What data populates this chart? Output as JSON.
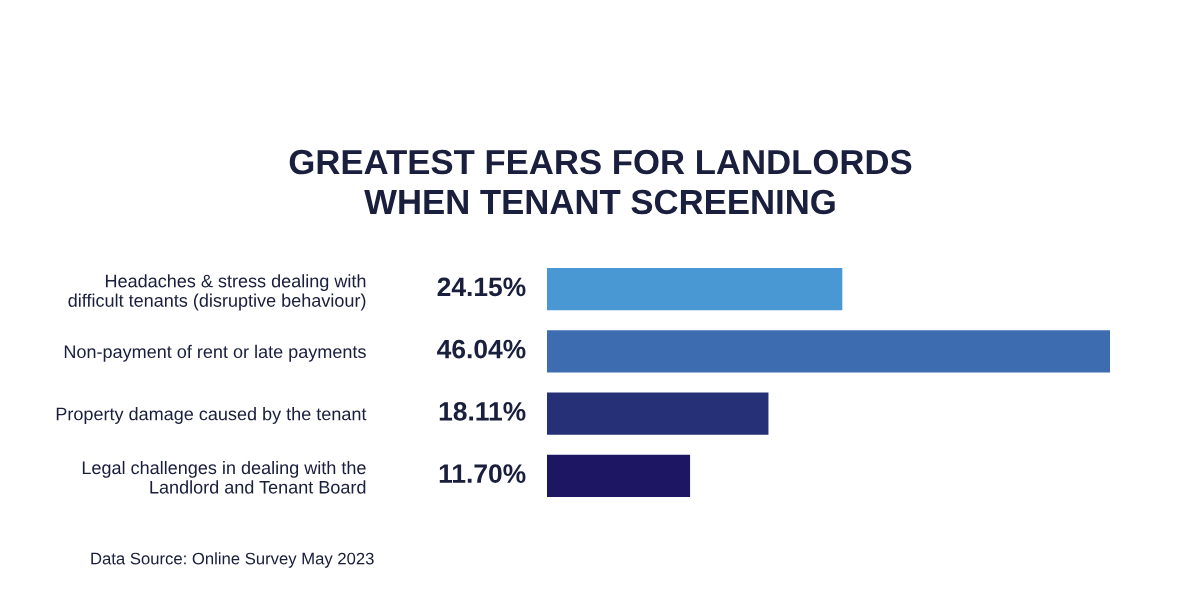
{
  "chart_data": {
    "type": "bar",
    "orientation": "horizontal",
    "title": "GREATEST FEARS FOR LANDLORDS\nWHEN TENANT SCREENING",
    "categories": [
      "Headaches & stress dealing with\ndifficult tenants (disruptive behaviour)",
      "Non-payment of rent or late payments",
      "Property damage caused by the tenant",
      "Legal challenges in dealing with the\nLandlord and Tenant Board"
    ],
    "values": [
      24.15,
      46.04,
      18.11,
      11.7
    ],
    "value_labels": [
      "24.15%",
      "46.04%",
      "18.11%",
      "11.70%"
    ],
    "colors": [
      "#4a98d3",
      "#3d6db0",
      "#263077",
      "#1d1763"
    ],
    "grid": false,
    "legend": false,
    "annotations": [
      "Data Source: Online Survey May 2023"
    ]
  }
}
